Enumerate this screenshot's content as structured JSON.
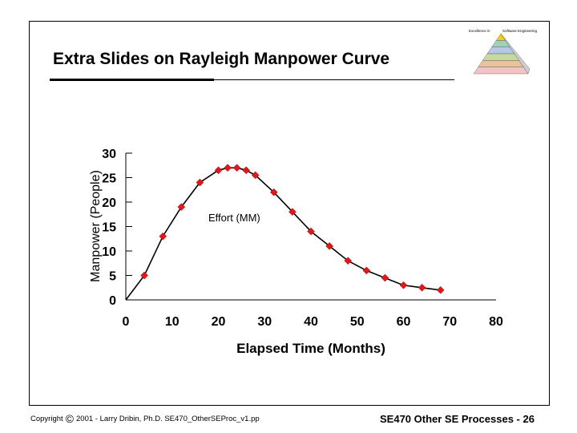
{
  "slide": {
    "title": "Extra Slides on Rayleigh Manpower Curve",
    "copyright_prefix": "Copyright",
    "copyright_symbol": "©",
    "copyright_text": "2001 - Larry Dribin, Ph.D. SE470_OtherSEProc_v1.pp",
    "footer_right": "SE470 Other SE Processes -  26"
  },
  "logo": {
    "left_text": "Excellence in",
    "right_text": "Software Engineering",
    "colors": [
      "#f2d200",
      "#9fd1b8",
      "#b7c7e6",
      "#c5d9a0",
      "#e9c39d",
      "#f3c4c4"
    ]
  },
  "chart_data": {
    "type": "line",
    "title": "",
    "xlabel": "Elapsed Time (Months)",
    "ylabel": "Manpower (People)",
    "xlim": [
      0,
      80
    ],
    "ylim": [
      0,
      30
    ],
    "x_ticks": [
      "0",
      "10",
      "20",
      "30",
      "40",
      "50",
      "60",
      "70",
      "80"
    ],
    "y_ticks": [
      "0",
      "5",
      "10",
      "15",
      "20",
      "25",
      "30"
    ],
    "annotation": "Effort (MM)",
    "marker_color": "#e0181c",
    "line_color": "#000000",
    "series": [
      {
        "name": "",
        "x": [
          0,
          4,
          8,
          12,
          16,
          20,
          22,
          24,
          26,
          28,
          32,
          36,
          40,
          44,
          48,
          52,
          56,
          60,
          64,
          68
        ],
        "y": [
          0,
          5,
          13,
          19,
          24,
          26.5,
          27,
          27,
          26.5,
          25.5,
          22,
          18,
          14,
          11,
          8,
          6,
          4.5,
          3,
          2.5,
          2
        ]
      }
    ]
  }
}
